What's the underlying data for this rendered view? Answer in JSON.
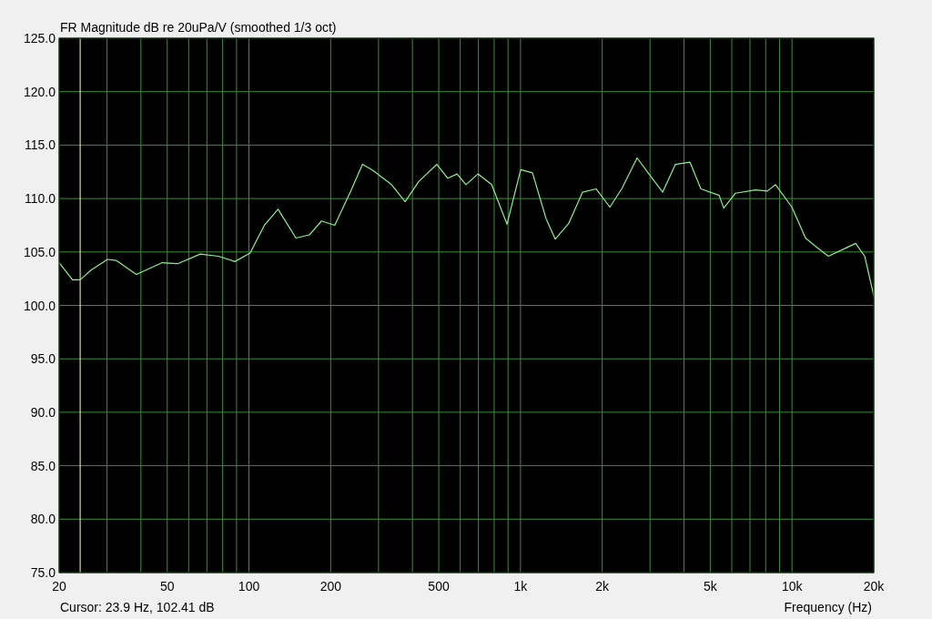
{
  "chart_data": {
    "type": "line",
    "title": "FR Magnitude dB re 20uPa/V (smoothed 1/3 oct)",
    "xlabel": "Frequency (Hz)",
    "log": "x",
    "grid": true,
    "x": [
      20,
      22.4,
      23.9,
      26.2,
      30.1,
      32.5,
      38.5,
      47.9,
      54.6,
      66.2,
      77.3,
      88.7,
      101,
      114,
      128,
      149,
      167,
      185,
      207,
      237,
      262,
      287,
      335,
      376,
      422,
      492,
      540,
      584,
      630,
      697,
      783,
      892,
      1002,
      1107,
      1243,
      1343,
      1508,
      1693,
      1901,
      2134,
      2359,
      2689,
      2951,
      3340,
      3720,
      4210,
      4617,
      5391,
      5604,
      6195,
      7336,
      8113,
      8696,
      9989,
      11216,
      12115,
      13606,
      15878,
      17152,
      18530,
      20000
    ],
    "series": [
      {
        "color": "#8cf08c",
        "values": [
          104.0,
          102.4,
          102.4,
          103.3,
          104.3,
          104.2,
          102.9,
          104.0,
          103.9,
          104.8,
          104.6,
          104.1,
          104.9,
          107.5,
          109.0,
          106.3,
          106.6,
          107.9,
          107.5,
          110.7,
          113.2,
          112.6,
          111.3,
          109.7,
          111.6,
          113.2,
          111.9,
          112.3,
          111.3,
          112.3,
          111.3,
          107.6,
          112.7,
          112.4,
          108.1,
          106.2,
          107.7,
          110.6,
          110.9,
          109.2,
          110.9,
          113.8,
          112.4,
          110.6,
          113.2,
          113.4,
          110.9,
          110.3,
          109.1,
          110.5,
          110.8,
          110.7,
          111.3,
          109.2,
          106.3,
          105.6,
          104.6,
          105.4,
          105.8,
          104.6,
          100.9
        ]
      }
    ],
    "xlim": [
      20,
      20000
    ],
    "xticks": [
      20,
      {
        "value": 30,
        "label": null
      },
      {
        "value": 40,
        "label": null
      },
      50,
      {
        "value": 60,
        "label": null
      },
      {
        "value": 70,
        "label": null
      },
      {
        "value": 80,
        "label": null
      },
      {
        "value": 90,
        "label": null
      },
      100,
      200,
      {
        "value": 300,
        "label": null
      },
      {
        "value": 400,
        "label": null
      },
      500,
      {
        "value": 600,
        "label": null
      },
      {
        "value": 700,
        "label": null
      },
      {
        "value": 800,
        "label": null
      },
      {
        "value": 900,
        "label": null
      },
      {
        "value": 1000,
        "label": "1k"
      },
      {
        "value": 2000,
        "label": "2k"
      },
      {
        "value": 3000,
        "label": null
      },
      {
        "value": 4000,
        "label": null
      },
      {
        "value": 5000,
        "label": "5k"
      },
      {
        "value": 6000,
        "label": null
      },
      {
        "value": 7000,
        "label": null
      },
      {
        "value": 8000,
        "label": null
      },
      {
        "value": 9000,
        "label": null
      },
      {
        "value": 10000,
        "label": "10k"
      },
      {
        "value": 20000,
        "label": "20k"
      }
    ],
    "ylim": [
      75,
      125
    ],
    "yticks": [
      {
        "value": 75,
        "label": "75.0"
      },
      {
        "value": 80,
        "label": "80.0"
      },
      {
        "value": 85,
        "label": "85.0"
      },
      {
        "value": 90,
        "label": "90.0"
      },
      {
        "value": 95,
        "label": "95.0"
      },
      {
        "value": 100,
        "label": "100.0"
      },
      {
        "value": 105,
        "label": "105.0"
      },
      {
        "value": 110,
        "label": "110.0"
      },
      {
        "value": 115,
        "label": "115.0"
      },
      {
        "value": 120,
        "label": "120.0"
      },
      {
        "value": 125,
        "label": "125.0"
      }
    ],
    "ref_lines": [
      {
        "axis": "x",
        "value": 23.9,
        "color": "#ffffc8"
      }
    ],
    "annotations": [
      "Cursor: 23.9 Hz, 102.41 dB"
    ]
  }
}
